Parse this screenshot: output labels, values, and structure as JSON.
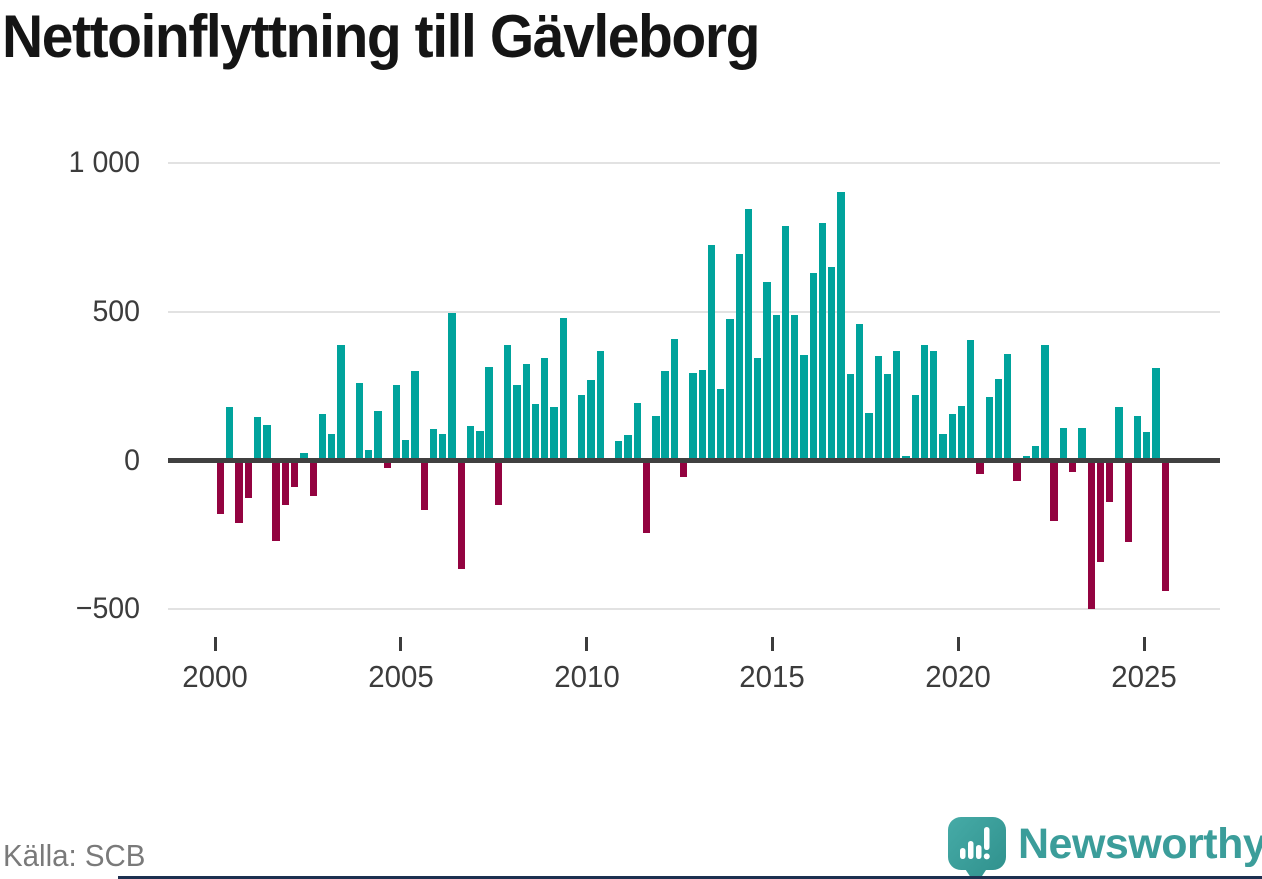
{
  "page": {
    "title": "Nettoinflyttning till Gävleborg",
    "source": "Källa: SCB",
    "brand": {
      "name": "Newsworthy",
      "logo_icon": "newsworthy-barchart-exclamation-badge"
    }
  },
  "colors": {
    "positive_bar": "#00A39C",
    "negative_bar": "#930340",
    "zero_axis": "#404040",
    "gridline": "#E2E2E2",
    "title_text": "#151515",
    "tick_text": "#3C3C3C",
    "source_text": "#7A7A7A",
    "brand_teal": "#3B9D9A",
    "badge_teal_light": "#46ABA7",
    "badge_teal_dark": "#2E8F8B",
    "footer_bar": "#1D3050"
  },
  "chart_data": {
    "type": "bar",
    "title": "Nettoinflyttning till Gävleborg",
    "x_unit": "quarter",
    "start_quarter": "2000-Q1",
    "end_quarter": "2025-Q3",
    "grid": "horizontal",
    "ylim": [
      -560,
      1040
    ],
    "y_ticks": [
      {
        "label": "1 000",
        "value": 1000
      },
      {
        "label": "500",
        "value": 500
      },
      {
        "label": "0",
        "value": 0
      },
      {
        "label": "−500",
        "value": -500
      }
    ],
    "x_ticks": [
      {
        "label": "2000",
        "year": 2000
      },
      {
        "label": "2005",
        "year": 2005
      },
      {
        "label": "2010",
        "year": 2010
      },
      {
        "label": "2015",
        "year": 2015
      },
      {
        "label": "2020",
        "year": 2020
      },
      {
        "label": "2025",
        "year": 2025
      }
    ],
    "values_by_year": {
      "2000": [
        -180,
        180,
        -210,
        -125
      ],
      "2001": [
        145,
        120,
        -270,
        -150
      ],
      "2002": [
        -90,
        25,
        -120,
        155
      ],
      "2003": [
        90,
        390,
        0,
        260
      ],
      "2004": [
        35,
        165,
        -25,
        255
      ],
      "2005": [
        70,
        300,
        -165,
        105
      ],
      "2006": [
        90,
        495,
        -365,
        115
      ],
      "2007": [
        100,
        315,
        -150,
        390
      ],
      "2008": [
        255,
        325,
        190,
        345
      ],
      "2009": [
        180,
        480,
        0,
        220
      ],
      "2010": [
        270,
        370,
        0,
        65
      ],
      "2011": [
        85,
        195,
        -245,
        150
      ],
      "2012": [
        300,
        410,
        -55,
        295
      ],
      "2013": [
        305,
        725,
        240,
        475
      ],
      "2014": [
        695,
        845,
        345,
        600
      ],
      "2015": [
        490,
        790,
        490,
        355
      ],
      "2016": [
        630,
        800,
        650,
        905
      ],
      "2017": [
        290,
        460,
        160,
        350
      ],
      "2018": [
        290,
        370,
        15,
        220
      ],
      "2019": [
        390,
        370,
        90,
        155
      ],
      "2020": [
        185,
        405,
        -45,
        215
      ],
      "2021": [
        275,
        360,
        -70,
        15
      ],
      "2022": [
        50,
        390,
        -205,
        110
      ],
      "2023": [
        -40,
        110,
        -500,
        -340
      ],
      "2024": [
        -140,
        180,
        -275,
        150
      ],
      "2025": [
        95,
        310,
        -440
      ]
    }
  }
}
